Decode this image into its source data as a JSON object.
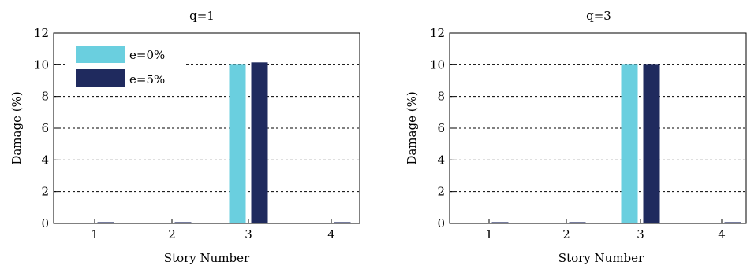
{
  "colors": {
    "e0": "#6acfdf",
    "e5": "#1f2a5e",
    "grid": "#000000"
  },
  "chart_data": [
    {
      "type": "bar",
      "title": "q=1",
      "xlabel": "Story Number",
      "ylabel": "Damage (%)",
      "categories": [
        "1",
        "2",
        "3",
        "4"
      ],
      "ylim": [
        0,
        12
      ],
      "yticks": [
        "0",
        "2",
        "4",
        "6",
        "8",
        "10",
        "12"
      ],
      "grid": "horizontal dashed",
      "legend_position": "top-left",
      "series": [
        {
          "name": "e=0%",
          "values": [
            0,
            0,
            10,
            0
          ]
        },
        {
          "name": "e=5%",
          "values": [
            0.08,
            0.08,
            10.15,
            0.08
          ]
        }
      ]
    },
    {
      "type": "bar",
      "title": "q=3",
      "xlabel": "Story Number",
      "ylabel": "Damage (%)",
      "categories": [
        "1",
        "2",
        "3",
        "4"
      ],
      "ylim": [
        0,
        12
      ],
      "yticks": [
        "0",
        "2",
        "4",
        "6",
        "8",
        "10",
        "12"
      ],
      "grid": "horizontal dashed",
      "series": [
        {
          "name": "e=0%",
          "values": [
            0,
            0,
            10,
            0
          ]
        },
        {
          "name": "e=5%",
          "values": [
            0.08,
            0.08,
            10,
            0.08
          ]
        }
      ]
    }
  ]
}
